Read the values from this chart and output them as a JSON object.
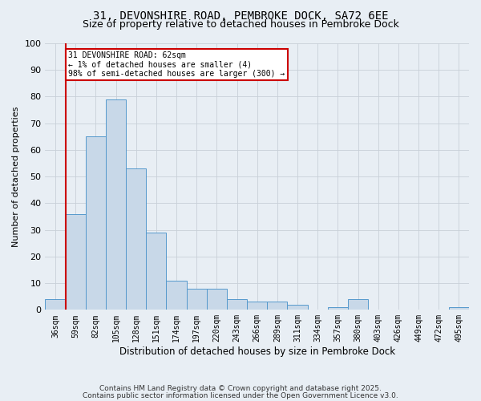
{
  "title1": "31, DEVONSHIRE ROAD, PEMBROKE DOCK, SA72 6EE",
  "title2": "Size of property relative to detached houses in Pembroke Dock",
  "xlabel": "Distribution of detached houses by size in Pembroke Dock",
  "ylabel": "Number of detached properties",
  "categories": [
    "36sqm",
    "59sqm",
    "82sqm",
    "105sqm",
    "128sqm",
    "151sqm",
    "174sqm",
    "197sqm",
    "220sqm",
    "243sqm",
    "266sqm",
    "289sqm",
    "311sqm",
    "334sqm",
    "357sqm",
    "380sqm",
    "403sqm",
    "426sqm",
    "449sqm",
    "472sqm",
    "495sqm"
  ],
  "values": [
    4,
    36,
    65,
    79,
    53,
    29,
    11,
    8,
    8,
    4,
    3,
    3,
    2,
    0,
    1,
    4,
    0,
    0,
    0,
    0,
    1
  ],
  "bar_color": "#c8d8e8",
  "bar_edge_color": "#5599cc",
  "vline_x_index": 1,
  "marker_label_line1": "31 DEVONSHIRE ROAD: 62sqm",
  "marker_label_line2": "← 1% of detached houses are smaller (4)",
  "marker_label_line3": "98% of semi-detached houses are larger (300) →",
  "annotation_box_color": "#ffffff",
  "annotation_box_edge_color": "#cc0000",
  "vline_color": "#cc0000",
  "ylim": [
    0,
    100
  ],
  "yticks": [
    0,
    10,
    20,
    30,
    40,
    50,
    60,
    70,
    80,
    90,
    100
  ],
  "grid_color": "#c8d0d8",
  "bg_color": "#e8eef4",
  "footer_line1": "Contains HM Land Registry data © Crown copyright and database right 2025.",
  "footer_line2": "Contains public sector information licensed under the Open Government Licence v3.0.",
  "title1_fontsize": 10,
  "title2_fontsize": 9,
  "xlabel_fontsize": 8.5,
  "ylabel_fontsize": 8,
  "tick_fontsize": 7,
  "annotation_fontsize": 7,
  "footer_fontsize": 6.5
}
